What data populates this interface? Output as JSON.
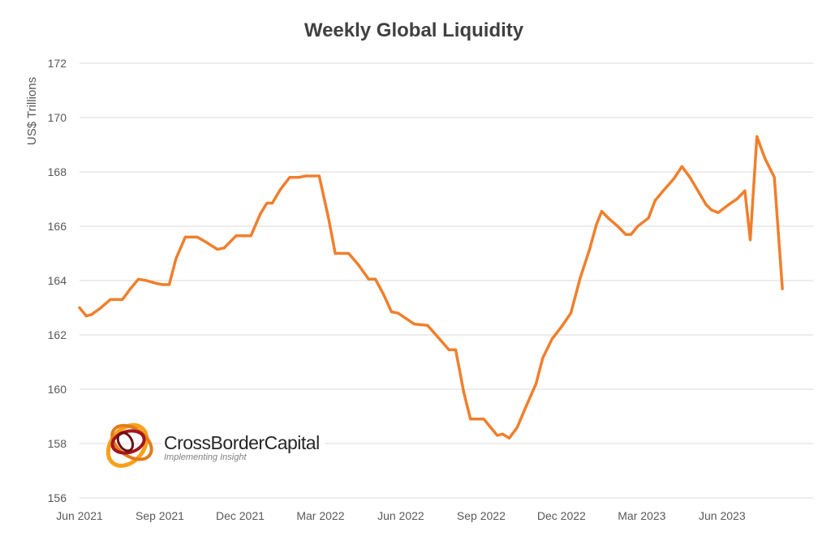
{
  "chart_data": {
    "type": "line",
    "title": "Weekly Global  Liquidity",
    "xlabel": "",
    "ylabel": "US$ Trillions",
    "ylim": [
      156,
      172
    ],
    "yticks": [
      156,
      158,
      160,
      162,
      164,
      166,
      168,
      170,
      172
    ],
    "xlim": [
      0,
      27.4
    ],
    "x_tick_labels": [
      {
        "label": "Jun 2021",
        "x": 0
      },
      {
        "label": "Sep 2021",
        "x": 3
      },
      {
        "label": "Dec 2021",
        "x": 6
      },
      {
        "label": "Mar 2022",
        "x": 9
      },
      {
        "label": "Jun 2022",
        "x": 12
      },
      {
        "label": "Sep 2022",
        "x": 15
      },
      {
        "label": "Dec 2022",
        "x": 18
      },
      {
        "label": "Mar 2023",
        "x": 21
      },
      {
        "label": "Jun 2023",
        "x": 24
      }
    ],
    "grid": true,
    "legend": "none",
    "series": [
      {
        "name": "Global Liquidity",
        "color": "#f07f2c",
        "points": [
          [
            0,
            163.0
          ],
          [
            0.25,
            162.7
          ],
          [
            0.45,
            162.75
          ],
          [
            0.8,
            163.0
          ],
          [
            1.15,
            163.3
          ],
          [
            1.6,
            163.3
          ],
          [
            1.9,
            163.7
          ],
          [
            2.2,
            164.05
          ],
          [
            2.5,
            164.0
          ],
          [
            2.85,
            163.9
          ],
          [
            3.1,
            163.85
          ],
          [
            3.35,
            163.85
          ],
          [
            3.6,
            164.8
          ],
          [
            3.95,
            165.6
          ],
          [
            4.4,
            165.6
          ],
          [
            4.75,
            165.4
          ],
          [
            5.15,
            165.15
          ],
          [
            5.4,
            165.2
          ],
          [
            5.85,
            165.65
          ],
          [
            6.4,
            165.65
          ],
          [
            6.75,
            166.45
          ],
          [
            7.0,
            166.85
          ],
          [
            7.2,
            166.85
          ],
          [
            7.5,
            167.35
          ],
          [
            7.85,
            167.8
          ],
          [
            8.2,
            167.8
          ],
          [
            8.45,
            167.85
          ],
          [
            8.95,
            167.85
          ],
          [
            9.3,
            166.3
          ],
          [
            9.55,
            165.0
          ],
          [
            10.05,
            165.0
          ],
          [
            10.4,
            164.6
          ],
          [
            10.8,
            164.05
          ],
          [
            11.05,
            164.05
          ],
          [
            11.35,
            163.5
          ],
          [
            11.65,
            162.85
          ],
          [
            11.9,
            162.8
          ],
          [
            12.5,
            162.4
          ],
          [
            13.0,
            162.35
          ],
          [
            13.4,
            161.9
          ],
          [
            13.8,
            161.45
          ],
          [
            14.05,
            161.45
          ],
          [
            14.35,
            159.9
          ],
          [
            14.6,
            158.9
          ],
          [
            15.1,
            158.9
          ],
          [
            15.35,
            158.6
          ],
          [
            15.6,
            158.3
          ],
          [
            15.8,
            158.35
          ],
          [
            16.05,
            158.2
          ],
          [
            16.35,
            158.6
          ],
          [
            16.65,
            159.3
          ],
          [
            17.05,
            160.2
          ],
          [
            17.3,
            161.15
          ],
          [
            17.65,
            161.85
          ],
          [
            18.0,
            162.3
          ],
          [
            18.35,
            162.8
          ],
          [
            18.7,
            164.1
          ],
          [
            19.05,
            165.15
          ],
          [
            19.3,
            166.05
          ],
          [
            19.5,
            166.55
          ],
          [
            19.8,
            166.25
          ],
          [
            20.1,
            166.0
          ],
          [
            20.4,
            165.7
          ],
          [
            20.6,
            165.7
          ],
          [
            20.85,
            166.0
          ],
          [
            21.25,
            166.3
          ],
          [
            21.5,
            166.95
          ],
          [
            21.8,
            167.3
          ],
          [
            22.2,
            167.75
          ],
          [
            22.5,
            168.2
          ],
          [
            22.8,
            167.8
          ],
          [
            23.1,
            167.3
          ],
          [
            23.4,
            166.8
          ],
          [
            23.6,
            166.6
          ],
          [
            23.85,
            166.5
          ],
          [
            24.25,
            166.8
          ],
          [
            24.55,
            167.0
          ],
          [
            24.85,
            167.3
          ],
          [
            25.05,
            165.5
          ],
          [
            25.3,
            169.3
          ],
          [
            25.6,
            168.5
          ],
          [
            25.95,
            167.8
          ],
          [
            26.25,
            163.7
          ]
        ]
      }
    ]
  },
  "branding": {
    "name": "CrossBorderCapital",
    "tagline": "Implementing Insight"
  }
}
